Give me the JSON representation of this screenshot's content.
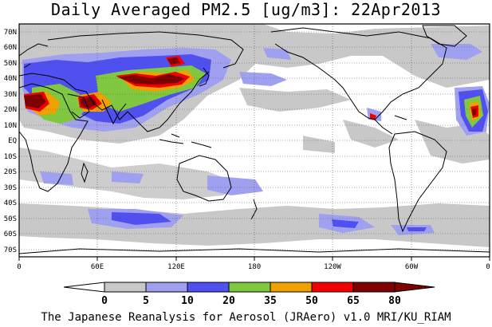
{
  "title": "Daily Averaged PM2.5 [ug/m3]: 22Apr2013",
  "footer": "The Japanese Reanalysis for Aerosol (JRAero) v1.0 MRI/KU_RIAM",
  "map": {
    "lon_range": [
      0,
      360
    ],
    "lat_range": [
      -75,
      75
    ],
    "lat_ticks": [
      "70N",
      "60N",
      "50N",
      "40N",
      "30N",
      "20N",
      "10N",
      "EQ",
      "10S",
      "20S",
      "30S",
      "40S",
      "50S",
      "60S",
      "70S"
    ],
    "lon_ticks": [
      "0",
      "60E",
      "120E",
      "180",
      "120W",
      "60W",
      "0"
    ],
    "grid": "dotted"
  },
  "colorbar": {
    "levels": [
      "0",
      "5",
      "10",
      "20",
      "35",
      "50",
      "65",
      "80"
    ],
    "colors": [
      "#ffffff",
      "#c8c8c8",
      "#a0a0f0",
      "#5050f0",
      "#80c840",
      "#f0a000",
      "#f00000",
      "#800000"
    ]
  }
}
